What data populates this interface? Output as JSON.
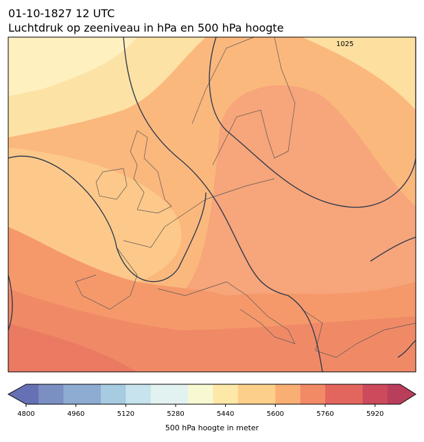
{
  "header": {
    "title": "01-10-1827 12 UTC",
    "subtitle": "Luchtdruk op zeeniveau in hPa en 500 hPa hoogte"
  },
  "map": {
    "isobar_labels": [
      "1025"
    ]
  },
  "colorbar": {
    "label": "500 hPa hoogte in meter",
    "clim": [
      4800,
      6000
    ],
    "ticks": [
      4800,
      4960,
      5120,
      5280,
      5440,
      5600,
      5760,
      5920
    ]
  }
}
